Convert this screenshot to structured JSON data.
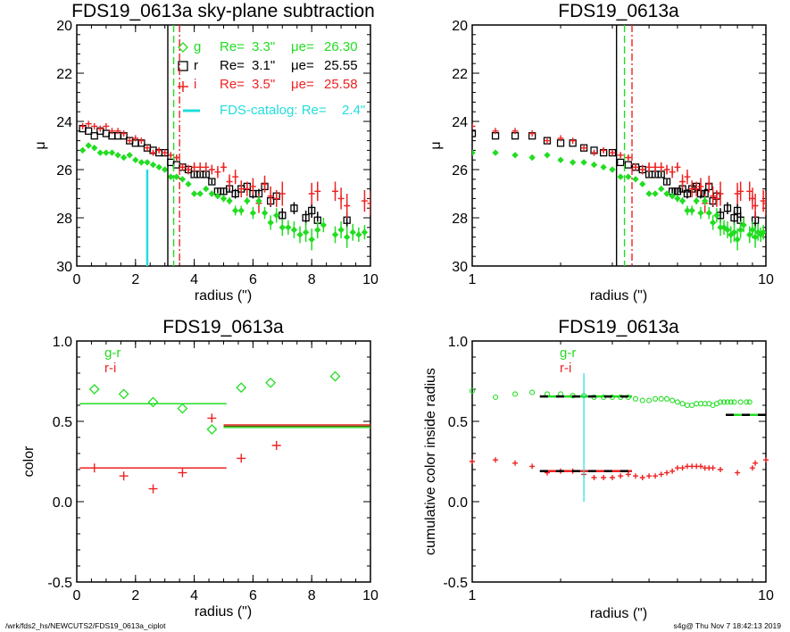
{
  "footer": {
    "path": "/wrk/fds2_hs/NEWCUTS2/FDS19_0613a_ciplot",
    "stamp": "s4g@  Thu Nov  7 18:42:13 2019"
  },
  "colors": {
    "g": "#22dd22",
    "r": "#000000",
    "i": "#ee2222",
    "catalog": "#22dddd"
  },
  "chart_data": [
    {
      "id": "profile-linear",
      "type": "scatter",
      "title": "FDS19_0613a sky-plane subtraction",
      "xlabel": "radius (\")",
      "ylabel": "μ",
      "xscale": "linear",
      "xlim": [
        0,
        10
      ],
      "ylim": [
        30,
        20
      ],
      "xticks": [
        "0",
        "2",
        "4",
        "6",
        "8",
        "10"
      ],
      "yticks": [
        "20",
        "22",
        "24",
        "26",
        "28",
        "30"
      ],
      "legend": [
        {
          "band": "g",
          "marker": "diamond",
          "label": "g",
          "re_label": "Re=",
          "re": "3.3\"",
          "mue_label": "μe=",
          "mue": "26.30"
        },
        {
          "band": "r",
          "marker": "square",
          "label": "r",
          "re_label": "Re=",
          "re": "3.1\"",
          "mue_label": "μe=",
          "mue": "25.55"
        },
        {
          "band": "i",
          "marker": "plus",
          "label": "i",
          "re_label": "Re=",
          "re": "3.5\"",
          "mue_label": "μe=",
          "mue": "25.58"
        },
        {
          "band": "catalog",
          "marker": "line",
          "label": "FDS-catalog: Re=",
          "re": "2.4\""
        }
      ],
      "vlines": [
        {
          "band": "r",
          "x": 3.1,
          "style": "solid"
        },
        {
          "band": "g",
          "x": 3.3,
          "style": "dashed"
        },
        {
          "band": "i",
          "x": 3.5,
          "style": "dashdot"
        },
        {
          "band": "catalog",
          "x": 2.4,
          "y_from": 26.0,
          "y_to": 30,
          "style": "solid"
        }
      ]
    },
    {
      "id": "profile-log",
      "type": "scatter",
      "title": "FDS19_0613a",
      "xlabel": "radius (\")",
      "ylabel": "μ",
      "xscale": "log",
      "xlim": [
        1,
        10
      ],
      "ylim": [
        30,
        20
      ],
      "xticks": [
        "1",
        "10"
      ],
      "yticks": [
        "20",
        "22",
        "24",
        "26",
        "28",
        "30"
      ]
    },
    {
      "id": "color-bins",
      "type": "scatter",
      "title": "FDS19_0613a",
      "xlabel": "radius (\")",
      "ylabel": "color",
      "xscale": "linear",
      "xlim": [
        0,
        10
      ],
      "ylim": [
        -0.5,
        1.0
      ],
      "xticks": [
        "0",
        "2",
        "4",
        "6",
        "8",
        "10"
      ],
      "yticks": [
        "-0.5",
        "0.0",
        "0.5",
        "1.0"
      ],
      "legend": [
        {
          "band": "g",
          "label": "g-r"
        },
        {
          "band": "i",
          "label": "r-i"
        }
      ],
      "series": [
        {
          "name": "g-r",
          "marker": "diamond",
          "x": [
            0.6,
            1.6,
            2.6,
            3.6,
            4.6,
            5.6,
            6.6,
            8.8
          ],
          "y": [
            0.7,
            0.67,
            0.62,
            0.58,
            0.45,
            0.71,
            0.74,
            0.78
          ]
        },
        {
          "name": "r-i",
          "marker": "plus",
          "x": [
            0.6,
            1.6,
            2.6,
            3.6,
            4.6,
            5.6,
            6.8
          ],
          "y": [
            0.21,
            0.16,
            0.08,
            0.18,
            0.52,
            0.27,
            0.35
          ]
        }
      ],
      "hlines": [
        {
          "name": "g-r inner",
          "x": [
            0.1,
            5.1
          ],
          "y": 0.61,
          "band": "g"
        },
        {
          "name": "r-i inner",
          "x": [
            0.1,
            5.1
          ],
          "y": 0.21,
          "band": "i"
        },
        {
          "name": "outer",
          "x": [
            5.0,
            10
          ],
          "y": 0.47,
          "band": "mixed"
        }
      ]
    },
    {
      "id": "cumulative-color",
      "type": "scatter",
      "title": "FDS19_0613a",
      "xlabel": "radius (\")",
      "ylabel": "cumulative color inside radius",
      "xscale": "log",
      "xlim": [
        1,
        10
      ],
      "ylim": [
        -0.5,
        1.0
      ],
      "xticks": [
        "1",
        "10"
      ],
      "yticks": [
        "-0.5",
        "0.0",
        "0.5",
        "1.0"
      ],
      "legend": [
        {
          "band": "g",
          "label": "g-r"
        },
        {
          "band": "i",
          "label": "r-i"
        }
      ],
      "vline": {
        "x": 2.4,
        "y_from": 0.0,
        "y_to": 0.8,
        "band": "catalog"
      },
      "series": [
        {
          "name": "g-r",
          "marker": "circle",
          "x": [
            1.0,
            1.2,
            1.4,
            1.6,
            1.8,
            2.0,
            2.2,
            2.4,
            2.6,
            2.8,
            3.0,
            3.2,
            3.4,
            3.6,
            3.8,
            4.0,
            4.2,
            4.4,
            4.6,
            4.8,
            5.0,
            5.2,
            5.4,
            5.6,
            5.8,
            6.0,
            6.2,
            6.4,
            6.6,
            6.8,
            7.0,
            7.2,
            7.4,
            7.6,
            7.8,
            8.2,
            8.6,
            8.8
          ],
          "y": [
            0.69,
            0.65,
            0.67,
            0.68,
            0.67,
            0.67,
            0.66,
            0.66,
            0.65,
            0.65,
            0.65,
            0.65,
            0.65,
            0.64,
            0.63,
            0.63,
            0.64,
            0.64,
            0.64,
            0.63,
            0.62,
            0.61,
            0.6,
            0.6,
            0.61,
            0.61,
            0.61,
            0.61,
            0.6,
            0.61,
            0.62,
            0.62,
            0.62,
            0.62,
            0.62,
            0.62,
            0.62,
            0.62
          ]
        },
        {
          "name": "r-i",
          "marker": "plus",
          "x": [
            1.0,
            1.2,
            1.4,
            1.6,
            1.8,
            2.0,
            2.2,
            2.4,
            2.6,
            2.8,
            3.0,
            3.2,
            3.4,
            3.6,
            3.8,
            4.0,
            4.2,
            4.4,
            4.6,
            4.8,
            5.0,
            5.2,
            5.4,
            5.6,
            5.8,
            6.0,
            6.2,
            6.4,
            6.6,
            7.0,
            8.0,
            9.0,
            9.2,
            10.0
          ],
          "y": [
            0.25,
            0.26,
            0.24,
            0.22,
            0.18,
            0.19,
            0.19,
            0.17,
            0.15,
            0.15,
            0.15,
            0.16,
            0.17,
            0.16,
            0.15,
            0.16,
            0.16,
            0.17,
            0.18,
            0.19,
            0.21,
            0.21,
            0.22,
            0.22,
            0.22,
            0.22,
            0.21,
            0.21,
            0.21,
            0.2,
            0.18,
            0.21,
            0.24,
            0.26
          ]
        }
      ],
      "hlines": [
        {
          "name": "g-r fit",
          "x": [
            1.7,
            3.5
          ],
          "y": 0.655,
          "band": "g"
        },
        {
          "name": "r-i fit",
          "x": [
            1.7,
            3.5
          ],
          "y": 0.19,
          "band": "i"
        },
        {
          "name": "g-r outer",
          "x": [
            7.3,
            10
          ],
          "y": 0.54,
          "band": "g"
        }
      ]
    }
  ],
  "profiles": {
    "g": {
      "x": [
        0.2,
        0.4,
        0.6,
        0.8,
        1.0,
        1.2,
        1.4,
        1.6,
        1.8,
        2.0,
        2.2,
        2.4,
        2.6,
        2.8,
        3.0,
        3.2,
        3.4,
        3.6,
        3.8,
        4.0,
        4.2,
        4.4,
        4.6,
        4.8,
        5.0,
        5.2,
        5.4,
        5.6,
        5.8,
        6.0,
        6.2,
        6.4,
        6.6,
        6.8,
        7.0,
        7.2,
        7.4,
        7.6,
        7.8,
        8.0,
        8.2,
        8.4,
        8.8,
        9.0,
        9.2,
        9.4,
        9.6,
        9.8
      ],
      "y": [
        25.2,
        25.0,
        25.1,
        25.3,
        25.3,
        25.3,
        25.4,
        25.5,
        25.4,
        25.6,
        25.7,
        25.7,
        25.8,
        25.9,
        26.0,
        26.3,
        26.3,
        26.4,
        26.6,
        27.0,
        27.0,
        26.8,
        27.0,
        27.1,
        27.2,
        27.3,
        27.7,
        27.7,
        27.3,
        27.8,
        27.3,
        27.8,
        28.2,
        27.9,
        28.4,
        28.4,
        28.5,
        28.7,
        28.6,
        28.9,
        28.5,
        28.3,
        28.7,
        28.5,
        28.8,
        28.6,
        28.7,
        28.6
      ],
      "err": [
        0.05,
        0.05,
        0.05,
        0.05,
        0.05,
        0.05,
        0.05,
        0.05,
        0.05,
        0.05,
        0.05,
        0.05,
        0.05,
        0.05,
        0.05,
        0.05,
        0.05,
        0.05,
        0.05,
        0.1,
        0.1,
        0.1,
        0.1,
        0.1,
        0.15,
        0.15,
        0.2,
        0.2,
        0.15,
        0.25,
        0.2,
        0.25,
        0.3,
        0.3,
        0.35,
        0.3,
        0.35,
        0.35,
        0.4,
        0.45,
        0.35,
        0.3,
        0.35,
        0.35,
        0.45,
        0.35,
        0.3,
        0.3
      ]
    },
    "r": {
      "x": [
        0.2,
        0.4,
        0.6,
        0.8,
        1.0,
        1.2,
        1.4,
        1.6,
        1.8,
        2.0,
        2.2,
        2.4,
        2.6,
        2.8,
        3.0,
        3.2,
        3.4,
        3.6,
        3.8,
        4.0,
        4.2,
        4.4,
        4.6,
        4.8,
        5.0,
        5.2,
        5.4,
        5.6,
        5.8,
        6.0,
        6.2,
        6.4,
        6.6,
        6.8,
        7.0,
        7.4,
        7.8,
        8.0,
        8.2,
        9.2
      ],
      "y": [
        24.3,
        24.4,
        24.6,
        24.4,
        24.5,
        24.6,
        24.6,
        24.6,
        24.8,
        24.9,
        24.9,
        25.1,
        25.2,
        25.3,
        25.3,
        25.7,
        25.8,
        25.9,
        26.0,
        26.2,
        26.2,
        26.2,
        26.5,
        26.9,
        26.9,
        26.8,
        27.0,
        26.8,
        26.7,
        27.0,
        27.0,
        26.7,
        27.3,
        27.1,
        27.9,
        27.6,
        28.0,
        27.7,
        28.1,
        28.1
      ],
      "err": [
        0.05,
        0.05,
        0.05,
        0.05,
        0.05,
        0.05,
        0.05,
        0.05,
        0.05,
        0.05,
        0.05,
        0.05,
        0.05,
        0.05,
        0.05,
        0.05,
        0.05,
        0.05,
        0.1,
        0.1,
        0.1,
        0.1,
        0.1,
        0.15,
        0.15,
        0.15,
        0.2,
        0.15,
        0.15,
        0.2,
        0.2,
        0.15,
        0.25,
        0.2,
        0.3,
        0.25,
        0.3,
        0.3,
        0.35,
        0.35
      ]
    },
    "i": {
      "x": [
        0.2,
        0.4,
        0.6,
        0.8,
        1.0,
        1.2,
        1.4,
        1.6,
        1.8,
        2.0,
        2.2,
        2.4,
        2.6,
        2.8,
        3.0,
        3.2,
        3.4,
        3.6,
        3.8,
        4.0,
        4.2,
        4.4,
        4.6,
        4.8,
        5.0,
        5.2,
        5.4,
        5.6,
        5.8,
        6.0,
        6.2,
        6.4,
        6.6,
        6.8,
        7.0,
        8.0,
        8.2,
        8.8,
        9.0,
        9.2,
        9.8,
        10.0
      ],
      "y": [
        24.2,
        24.1,
        24.2,
        24.3,
        24.2,
        24.4,
        24.4,
        24.5,
        24.8,
        24.7,
        24.8,
        25.1,
        25.3,
        25.2,
        25.3,
        25.4,
        25.5,
        25.9,
        26.0,
        25.9,
        25.9,
        25.9,
        26.0,
        26.1,
        25.9,
        26.5,
        26.3,
        26.8,
        26.8,
        26.7,
        27.4,
        26.6,
        27.1,
        27.2,
        27.0,
        27.0,
        26.9,
        26.9,
        27.2,
        27.5,
        27.3,
        27.4
      ],
      "err": [
        0.05,
        0.05,
        0.05,
        0.05,
        0.05,
        0.05,
        0.05,
        0.05,
        0.05,
        0.05,
        0.05,
        0.05,
        0.1,
        0.1,
        0.1,
        0.1,
        0.1,
        0.15,
        0.2,
        0.2,
        0.2,
        0.2,
        0.2,
        0.25,
        0.2,
        0.3,
        0.3,
        0.35,
        0.3,
        0.35,
        0.4,
        0.35,
        0.4,
        0.35,
        0.5,
        0.45,
        0.4,
        0.4,
        0.45,
        0.5,
        0.45,
        0.5
      ]
    }
  }
}
